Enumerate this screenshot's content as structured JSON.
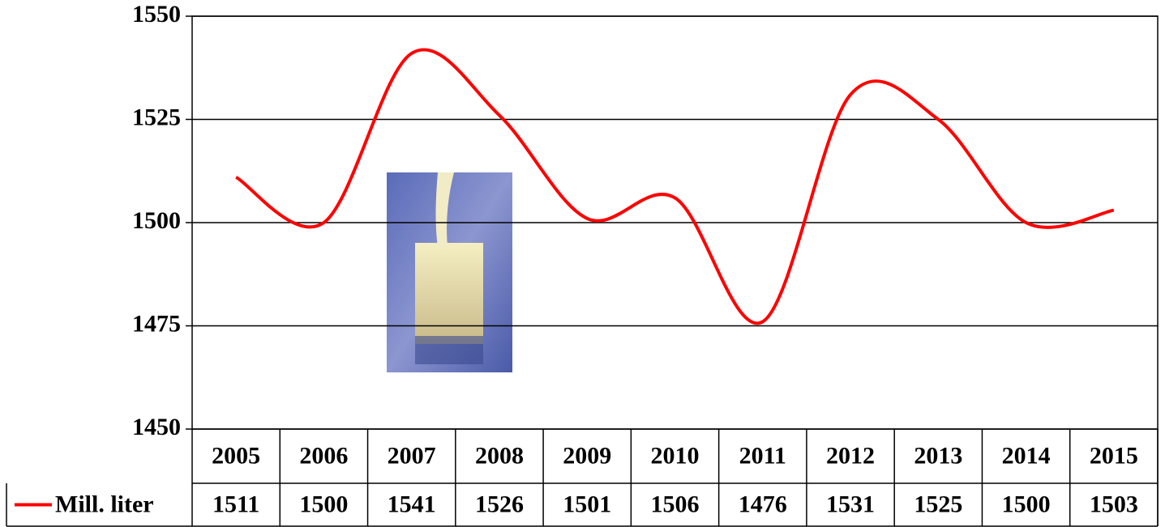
{
  "chart_data": {
    "type": "line",
    "categories": [
      "2005",
      "2006",
      "2007",
      "2008",
      "2009",
      "2010",
      "2011",
      "2012",
      "2013",
      "2014",
      "2015"
    ],
    "series": [
      {
        "name": "Mill. liter",
        "color": "#ff0000",
        "values": [
          1511,
          1500,
          1541,
          1526,
          1501,
          1506,
          1476,
          1531,
          1525,
          1500,
          1503
        ]
      }
    ],
    "ylim": [
      1450,
      1550
    ],
    "yticks": [
      1450,
      1475,
      1500,
      1525,
      1550
    ],
    "grid": true,
    "smooth": true
  }
}
